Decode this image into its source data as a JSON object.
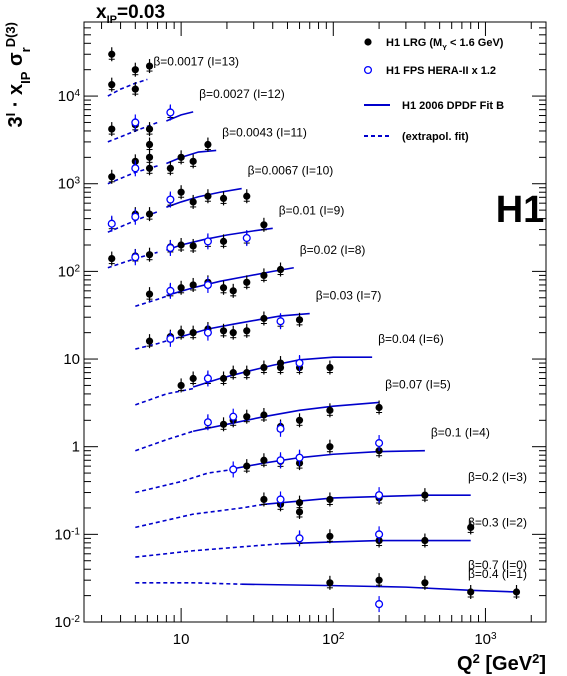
{
  "chart_data": {
    "type": "scatter",
    "title": "x",
    "title_subscript": "IP",
    "title_value": "=0.03",
    "xlabel": "Q",
    "xlabel_sup": "2",
    "xlabel_units": "[GeV",
    "xlabel_units_sup": "2",
    "xlabel_units_end": "]",
    "ylabel_parts": {
      "a": "3",
      "a_sup": "I",
      "b": " · x",
      "b_sub": "IP",
      "c": " σ",
      "c_sub": "r",
      "c_sup": "D(3)"
    },
    "x_scale": "log",
    "y_scale": "log",
    "xlim": [
      2.3,
      2500
    ],
    "ylim": [
      0.01,
      70000
    ],
    "x_ticks": [
      {
        "value": 10,
        "label": "10"
      },
      {
        "value": 100,
        "label": "10",
        "sup": "2"
      },
      {
        "value": 1000,
        "label": "10",
        "sup": "3"
      }
    ],
    "y_ticks": [
      {
        "value": 0.01,
        "label": "10",
        "sup": "-2"
      },
      {
        "value": 0.1,
        "label": "10",
        "sup": "-1"
      },
      {
        "value": 1,
        "label": "1"
      },
      {
        "value": 10,
        "label": "10"
      },
      {
        "value": 100,
        "label": "10",
        "sup": "2"
      },
      {
        "value": 1000,
        "label": "10",
        "sup": "3"
      },
      {
        "value": 10000,
        "label": "10",
        "sup": "4"
      }
    ],
    "experiment_label": "H1",
    "legend": {
      "placement": "top-right",
      "entries": [
        {
          "marker": "filled-circle",
          "text": "H1 LRG (M",
          "sub": "Y",
          "text2": " < 1.6 GeV)"
        },
        {
          "marker": "open-circle",
          "text": "H1 FPS HERA-II x 1.2"
        },
        {
          "marker": "solid-line",
          "text": "H1 2006 DPDF Fit B"
        },
        {
          "marker": "dashed-line",
          "text": "(extrapol. fit)"
        }
      ]
    },
    "colors": {
      "lrg": "#000000",
      "fps": "#0000ff",
      "fit": "#0000cc"
    },
    "series": [
      {
        "label": "β=0.0017 (I=13)",
        "beta": 0.0017,
        "I": 13,
        "lrg": [
          [
            3.5,
            30000
          ],
          [
            3.5,
            13500
          ],
          [
            5,
            20000
          ],
          [
            6.2,
            22000
          ],
          [
            5,
            12000
          ]
        ],
        "fps": [],
        "dashed": [
          [
            3.3,
            10000
          ],
          [
            4,
            12000
          ],
          [
            5,
            14000
          ],
          [
            6,
            15500
          ]
        ],
        "solid": []
      },
      {
        "label": "β=0.0027 (I=12)",
        "beta": 0.0027,
        "I": 12,
        "lrg": [
          [
            3.5,
            4200
          ],
          [
            5,
            4700
          ],
          [
            6.2,
            4200
          ],
          [
            8.5,
            6500
          ],
          [
            6.2,
            2800
          ]
        ],
        "fps": [
          [
            5,
            5000
          ],
          [
            8.5,
            6500
          ]
        ],
        "dashed": [
          [
            3.3,
            3000
          ],
          [
            5,
            4000
          ],
          [
            7,
            5000
          ]
        ],
        "solid": [
          [
            8,
            5200
          ],
          [
            10,
            6100
          ],
          [
            12,
            6600
          ]
        ]
      },
      {
        "label": "β=0.0043 (I=11)",
        "beta": 0.0043,
        "I": 11,
        "lrg": [
          [
            3.5,
            1200
          ],
          [
            5,
            1800
          ],
          [
            6.2,
            1500
          ],
          [
            8.5,
            1500
          ],
          [
            12,
            1800
          ],
          [
            15,
            2800
          ],
          [
            6.2,
            2000
          ],
          [
            10,
            2000
          ]
        ],
        "fps": [
          [
            5,
            1500
          ]
        ],
        "dashed": [
          [
            3.3,
            1000
          ],
          [
            5,
            1350
          ],
          [
            7,
            1600
          ]
        ],
        "solid": [
          [
            8,
            1700
          ],
          [
            10,
            2000
          ],
          [
            13,
            2300
          ],
          [
            17,
            2400
          ]
        ]
      },
      {
        "label": "β=0.0067 (I=10)",
        "beta": 0.0067,
        "I": 10,
        "lrg": [
          [
            3.5,
            350
          ],
          [
            5,
            450
          ],
          [
            6.2,
            450
          ],
          [
            8.5,
            650
          ],
          [
            12,
            620
          ],
          [
            15,
            720
          ],
          [
            19,
            680
          ],
          [
            27,
            720
          ],
          [
            10,
            800
          ]
        ],
        "fps": [
          [
            3.5,
            350
          ],
          [
            5,
            420
          ],
          [
            8.5,
            660
          ]
        ],
        "dashed": [
          [
            3.3,
            280
          ],
          [
            5,
            380
          ],
          [
            7,
            480
          ]
        ],
        "solid": [
          [
            8,
            540
          ],
          [
            10,
            620
          ],
          [
            13,
            710
          ],
          [
            18,
            800
          ],
          [
            25,
            880
          ]
        ]
      },
      {
        "label": "β=0.01 (I=9)",
        "beta": 0.01,
        "I": 9,
        "lrg": [
          [
            3.5,
            140
          ],
          [
            5,
            150
          ],
          [
            6.2,
            155
          ],
          [
            8.5,
            190
          ],
          [
            12,
            195
          ],
          [
            15,
            220
          ],
          [
            19,
            220
          ],
          [
            27,
            240
          ],
          [
            35,
            340
          ],
          [
            10,
            200
          ]
        ],
        "fps": [
          [
            5,
            145
          ],
          [
            8.5,
            185
          ],
          [
            15,
            220
          ],
          [
            27,
            240
          ]
        ],
        "dashed": [
          [
            3.3,
            110
          ],
          [
            5,
            140
          ],
          [
            7,
            165
          ]
        ],
        "solid": [
          [
            8,
            175
          ],
          [
            10,
            200
          ],
          [
            14,
            230
          ],
          [
            20,
            260
          ],
          [
            30,
            290
          ],
          [
            40,
            310
          ]
        ]
      },
      {
        "label": "β=0.02 (I=8)",
        "beta": 0.02,
        "I": 8,
        "lrg": [
          [
            6.2,
            55
          ],
          [
            8.5,
            60
          ],
          [
            12,
            70
          ],
          [
            15,
            75
          ],
          [
            19,
            65
          ],
          [
            22,
            60
          ],
          [
            27,
            75
          ],
          [
            35,
            90
          ],
          [
            45,
            105
          ],
          [
            10,
            65
          ]
        ],
        "fps": [
          [
            8.5,
            60
          ],
          [
            15,
            70
          ]
        ],
        "dashed": [
          [
            5,
            40
          ],
          [
            7,
            48
          ],
          [
            8,
            52
          ]
        ],
        "solid": [
          [
            8,
            53
          ],
          [
            12,
            65
          ],
          [
            18,
            77
          ],
          [
            27,
            88
          ],
          [
            40,
            100
          ],
          [
            55,
            110
          ]
        ]
      },
      {
        "label": "β=0.03 (I=7)",
        "beta": 0.03,
        "I": 7,
        "lrg": [
          [
            6.2,
            16
          ],
          [
            8.5,
            18
          ],
          [
            12,
            20
          ],
          [
            15,
            22
          ],
          [
            19,
            21
          ],
          [
            22,
            20
          ],
          [
            27,
            21
          ],
          [
            35,
            29
          ],
          [
            45,
            27
          ],
          [
            60,
            28
          ],
          [
            10,
            20
          ]
        ],
        "fps": [
          [
            8.5,
            17
          ],
          [
            15,
            20
          ],
          [
            45,
            27
          ]
        ],
        "dashed": [
          [
            5,
            13
          ],
          [
            7,
            15
          ],
          [
            10,
            18
          ]
        ],
        "solid": [
          [
            10,
            18
          ],
          [
            15,
            22
          ],
          [
            22,
            25
          ],
          [
            32,
            28
          ],
          [
            45,
            31
          ],
          [
            70,
            33
          ]
        ]
      },
      {
        "label": "β=0.04 (I=6)",
        "beta": 0.04,
        "I": 6,
        "lrg": [
          [
            10,
            5
          ],
          [
            12,
            6
          ],
          [
            15,
            6
          ],
          [
            19,
            6
          ],
          [
            22,
            7
          ],
          [
            27,
            7
          ],
          [
            35,
            8
          ],
          [
            45,
            8
          ],
          [
            60,
            8
          ],
          [
            95,
            8
          ],
          [
            45,
            9
          ],
          [
            60,
            9
          ]
        ],
        "fps": [
          [
            15,
            6
          ],
          [
            60,
            9
          ]
        ],
        "dashed": [
          [
            5,
            3
          ],
          [
            8,
            4
          ],
          [
            12,
            4.6
          ]
        ],
        "solid": [
          [
            12,
            4.8
          ],
          [
            18,
            6
          ],
          [
            27,
            7.2
          ],
          [
            40,
            8.5
          ],
          [
            60,
            9.8
          ],
          [
            100,
            10.5
          ],
          [
            180,
            10.5
          ]
        ]
      },
      {
        "label": "β=0.07 (I=5)",
        "beta": 0.07,
        "I": 5,
        "lrg": [
          [
            15,
            1.9
          ],
          [
            19,
            1.8
          ],
          [
            22,
            2
          ],
          [
            27,
            2.2
          ],
          [
            35,
            2.3
          ],
          [
            45,
            1.7
          ],
          [
            60,
            2
          ],
          [
            95,
            2.6
          ],
          [
            200,
            2.8
          ]
        ],
        "fps": [
          [
            15,
            1.9
          ],
          [
            22,
            2.2
          ],
          [
            45,
            1.6
          ]
        ],
        "dashed": [
          [
            5,
            0.9
          ],
          [
            8,
            1.2
          ],
          [
            12,
            1.5
          ]
        ],
        "solid": [
          [
            12,
            1.5
          ],
          [
            20,
            1.8
          ],
          [
            35,
            2.2
          ],
          [
            60,
            2.6
          ],
          [
            100,
            2.9
          ],
          [
            200,
            3.2
          ]
        ]
      },
      {
        "label": "β=0.1 (I=4)",
        "beta": 0.1,
        "I": 4,
        "lrg": [
          [
            27,
            0.6
          ],
          [
            35,
            0.7
          ],
          [
            45,
            0.68
          ],
          [
            60,
            0.65
          ],
          [
            95,
            1
          ],
          [
            200,
            0.9
          ],
          [
            60,
            0.75
          ]
        ],
        "fps": [
          [
            22,
            0.55
          ],
          [
            45,
            0.7
          ],
          [
            60,
            0.75
          ],
          [
            200,
            1.1
          ]
        ],
        "dashed": [
          [
            5,
            0.3
          ],
          [
            10,
            0.4
          ],
          [
            15,
            0.5
          ],
          [
            22,
            0.55
          ]
        ],
        "solid": [
          [
            22,
            0.56
          ],
          [
            35,
            0.65
          ],
          [
            60,
            0.75
          ],
          [
            100,
            0.82
          ],
          [
            200,
            0.88
          ],
          [
            400,
            0.9
          ]
        ]
      },
      {
        "label": "β=0.2 (I=3)",
        "beta": 0.2,
        "I": 3,
        "lrg": [
          [
            35,
            0.25
          ],
          [
            45,
            0.22
          ],
          [
            60,
            0.18
          ],
          [
            95,
            0.25
          ],
          [
            200,
            0.26
          ],
          [
            400,
            0.28
          ],
          [
            60,
            0.23
          ]
        ],
        "fps": [
          [
            45,
            0.25
          ],
          [
            200,
            0.28
          ]
        ],
        "dashed": [
          [
            5,
            0.12
          ],
          [
            12,
            0.17
          ],
          [
            25,
            0.2
          ],
          [
            35,
            0.22
          ]
        ],
        "solid": [
          [
            35,
            0.22
          ],
          [
            60,
            0.24
          ],
          [
            100,
            0.26
          ],
          [
            200,
            0.27
          ],
          [
            400,
            0.28
          ],
          [
            800,
            0.28
          ]
        ]
      },
      {
        "label": "β=0.3 (I=2)",
        "beta": 0.3,
        "I": 2,
        "lrg": [
          [
            60,
            0.09
          ],
          [
            95,
            0.095
          ],
          [
            200,
            0.085
          ],
          [
            400,
            0.085
          ],
          [
            800,
            0.12
          ]
        ],
        "fps": [
          [
            60,
            0.09
          ],
          [
            200,
            0.1
          ]
        ],
        "dashed": [
          [
            5,
            0.055
          ],
          [
            12,
            0.065
          ],
          [
            25,
            0.072
          ],
          [
            45,
            0.078
          ]
        ],
        "solid": [
          [
            45,
            0.078
          ],
          [
            100,
            0.082
          ],
          [
            200,
            0.085
          ],
          [
            400,
            0.085
          ],
          [
            800,
            0.085
          ]
        ]
      },
      {
        "label": "β=0.4 (I=1)",
        "beta": 0.4,
        "I": 1,
        "lrg": [
          [
            95,
            0.028
          ],
          [
            200,
            0.03
          ],
          [
            400,
            0.028
          ],
          [
            800,
            0.022
          ],
          [
            1600,
            0.022
          ]
        ],
        "fps": [
          [
            200,
            0.016
          ]
        ],
        "dashed": [
          [
            5,
            0.028
          ],
          [
            12,
            0.028
          ],
          [
            25,
            0.027
          ]
        ],
        "solid": [
          [
            25,
            0.027
          ],
          [
            100,
            0.026
          ],
          [
            300,
            0.025
          ],
          [
            800,
            0.023
          ],
          [
            1600,
            0.022
          ]
        ]
      },
      {
        "label": "β=0.7 (I=0)",
        "beta": 0.7,
        "I": 0,
        "lrg": [],
        "fps": [],
        "dashed": [],
        "solid": []
      }
    ]
  }
}
